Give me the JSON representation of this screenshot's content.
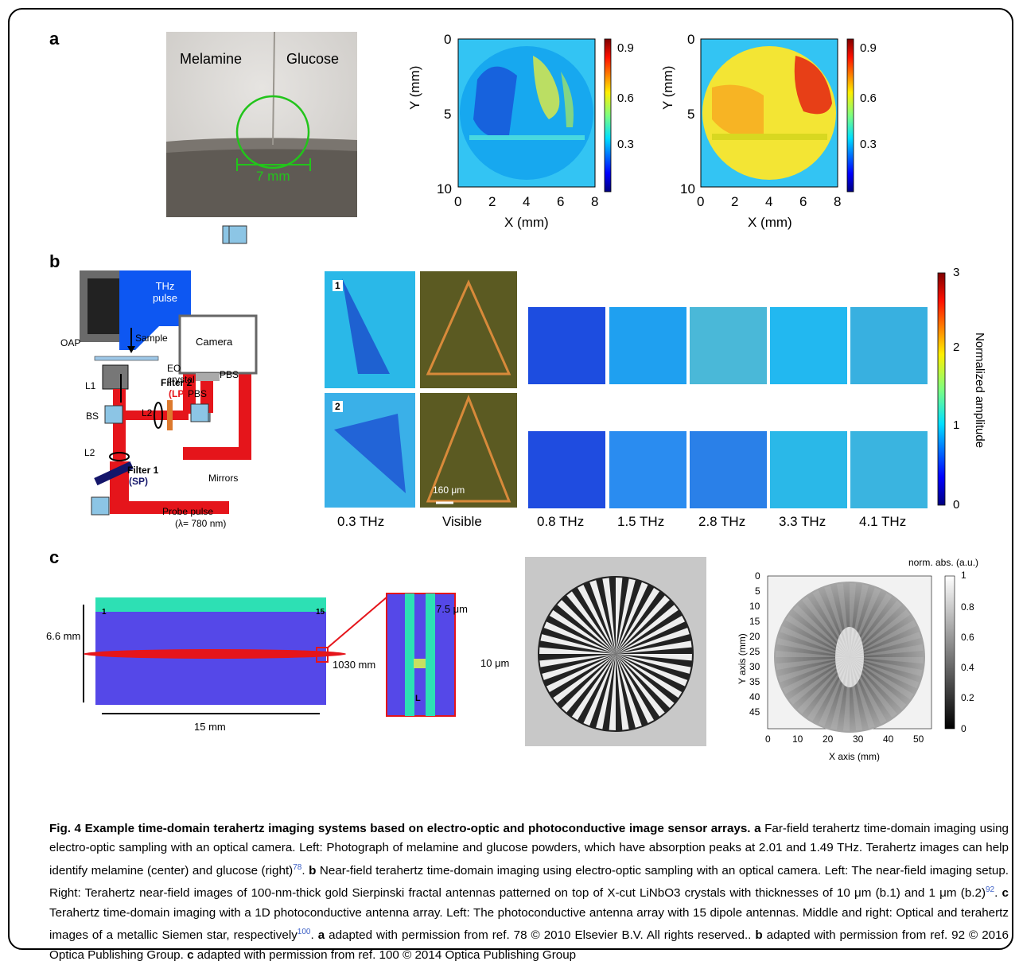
{
  "panel_labels": {
    "a": "a",
    "b": "b",
    "c": "c"
  },
  "panel_a": {
    "photo": {
      "left_label": "Melamine",
      "right_label": "Glucose",
      "scale_bar": "7 mm"
    },
    "maps": [
      {
        "ylabel": "Y (mm)",
        "xlabel": "X (mm)",
        "yticks": [
          "0",
          "5",
          "10"
        ],
        "xticks": [
          "0",
          "2",
          "4",
          "6",
          "8"
        ],
        "cbar_ticks": [
          "0.9",
          "0.6",
          "0.3"
        ]
      },
      {
        "ylabel": "Y (mm)",
        "xlabel": "X (mm)",
        "yticks": [
          "0",
          "5",
          "10"
        ],
        "xticks": [
          "0",
          "2",
          "4",
          "6",
          "8"
        ],
        "cbar_ticks": [
          "0.9",
          "0.6",
          "0.3"
        ]
      }
    ]
  },
  "panel_b": {
    "setup": {
      "thz_pulse": "THz pulse",
      "oap": "OAP",
      "sample": "Sample",
      "eo_crystal": "EO crystal",
      "camera": "Camera",
      "l1": "L1",
      "l2a": "L2",
      "l2b": "L2",
      "bs": "BS",
      "pbs1": "PBS",
      "pbs2": "PBS",
      "filter2": "Filter 2",
      "filter2_type": "(LP)",
      "filter1": "Filter 1",
      "filter1_type": "(SP)",
      "mirrors": "Mirrors",
      "probe": "Probe pulse",
      "wavelength": "(λ= 780 nm)"
    },
    "row_labels": [
      "1",
      "2"
    ],
    "scale_bar": "160 μm",
    "frequencies": [
      "0.3 THz",
      "Visible",
      "0.8 THz",
      "1.5 THz",
      "2.8 THz",
      "3.3 THz",
      "4.1 THz"
    ],
    "colorbar": {
      "label": "Normalized amplitude",
      "ticks": [
        "3",
        "2",
        "1",
        "0"
      ]
    }
  },
  "panel_c": {
    "array": {
      "height": "6.6 mm",
      "width": "15 mm",
      "beam": "1030 mm",
      "first": "1",
      "last": "15"
    },
    "zoom": {
      "gap": "7.5 μm",
      "pad": "10 μm",
      "length": "L"
    },
    "map": {
      "title": "norm. abs. (a.u.)",
      "ylabel": "Y axis (mm)",
      "xlabel": "X axis (mm)",
      "yticks": [
        "0",
        "5",
        "10",
        "15",
        "20",
        "25",
        "30",
        "35",
        "40",
        "45"
      ],
      "xticks": [
        "0",
        "10",
        "20",
        "30",
        "40",
        "50"
      ],
      "cbar_ticks": [
        "1",
        "0.8",
        "0.6",
        "0.4",
        "0.2",
        "0"
      ]
    }
  },
  "caption": {
    "fig": "Fig. 4",
    "title": "Example time-domain terahertz imaging systems based on electro-optic and photoconductive image sensor arrays.",
    "a_label": "a",
    "a_text": "Far-field terahertz time-domain imaging using electro-optic sampling with an optical camera. Left: Photograph of melamine and glucose powders, which have absorption peaks at 2.01 and 1.49 THz. Terahertz images can help identify melamine (center) and glucose (right)",
    "ref78": "78",
    "b_label": "b",
    "b_text": "Near-field terahertz time-domain imaging using electro-optic sampling with an optical camera. Left: The near-field imaging setup. Right: Terahertz near-field images of 100-nm-thick gold Sierpinski fractal antennas patterned on top of X-cut LiNbO3 crystals with thicknesses of 10 μm (b.1) and 1 μm (b.2)",
    "ref92": "92",
    "c_label": "c",
    "c_text": "Terahertz time-domain imaging with a 1D photoconductive antenna array. Left: The photoconductive antenna array with 15 dipole antennas. Middle and right: Optical and terahertz images of a metallic Siemen star, respectively",
    "ref100": "100",
    "credit_a": "adapted with permission from ref. 78 © 2010 Elsevier B.V. All rights reserved..",
    "credit_b": "adapted with permission from ref. 92 © 2016 Optica Publishing Group.",
    "credit_c": "adapted with permission from ref. 100 © 2014 Optica Publishing Group"
  }
}
